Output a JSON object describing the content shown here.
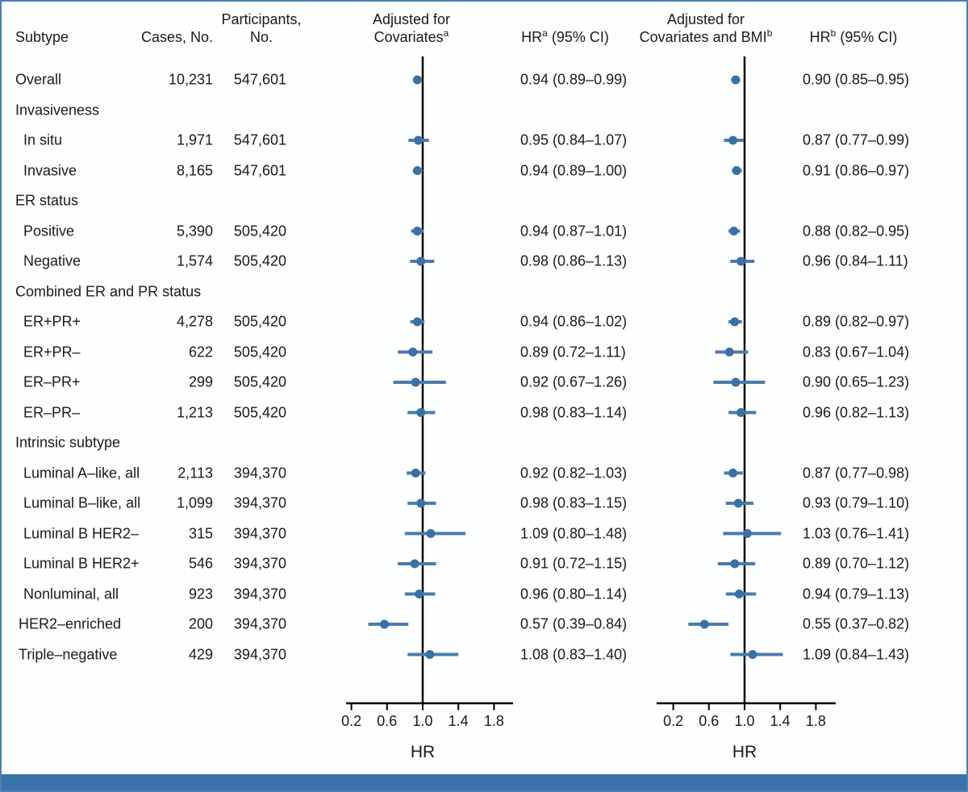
{
  "figure": {
    "columns": {
      "subtype": "Subtype",
      "cases": "Cases, No.",
      "participants_line1": "Participants,",
      "participants_line2": "No.",
      "panel1_line1": "Adjusted for",
      "panel1_line2_pre": "Covariates",
      "panel1_line2_sup": "a",
      "hr1_pre": "HR",
      "hr1_sup": "a",
      "hr1_post": " (95% CI)",
      "panel2_line1": "Adjusted for",
      "panel2_line2_pre": "Covariates and BMI",
      "panel2_line2_sup": "b",
      "hr2_pre": "HR",
      "hr2_sup": "b",
      "hr2_post": " (95% CI)"
    },
    "rows": [
      {
        "label": "Overall",
        "indent": 0,
        "cases": "10,231",
        "participants": "547,601",
        "hr1": "0.94 (0.89–0.99)",
        "hr2": "0.90 (0.85–0.95)"
      },
      {
        "label": "Invasiveness",
        "indent": 0,
        "section": true
      },
      {
        "label": "In situ",
        "indent": 1,
        "cases": "1,971",
        "participants": "547,601",
        "hr1": "0.95 (0.84–1.07)",
        "hr2": "0.87 (0.77–0.99)"
      },
      {
        "label": "Invasive",
        "indent": 1,
        "cases": "8,165",
        "participants": "547,601",
        "hr1": "0.94 (0.89–1.00)",
        "hr2": "0.91 (0.86–0.97)"
      },
      {
        "label": "ER status",
        "indent": 0,
        "section": true
      },
      {
        "label": "Positive",
        "indent": 1,
        "cases": "5,390",
        "participants": "505,420",
        "hr1": "0.94 (0.87–1.01)",
        "hr2": "0.88 (0.82–0.95)"
      },
      {
        "label": "Negative",
        "indent": 1,
        "cases": "1,574",
        "participants": "505,420",
        "hr1": "0.98 (0.86–1.13)",
        "hr2": "0.96 (0.84–1.11)"
      },
      {
        "label": "Combined ER and PR status",
        "indent": 0,
        "section": true
      },
      {
        "label": "ER+PR+",
        "indent": 1,
        "cases": "4,278",
        "participants": "505,420",
        "hr1": "0.94 (0.86–1.02)",
        "hr2": "0.89 (0.82–0.97)"
      },
      {
        "label": "ER+PR–",
        "indent": 1,
        "cases": "622",
        "participants": "505,420",
        "hr1": "0.89 (0.72–1.11)",
        "hr2": "0.83 (0.67–1.04)"
      },
      {
        "label": "ER–PR+",
        "indent": 1,
        "cases": "299",
        "participants": "505,420",
        "hr1": "0.92 (0.67–1.26)",
        "hr2": "0.90 (0.65–1.23)"
      },
      {
        "label": "ER–PR–",
        "indent": 1,
        "cases": "1,213",
        "participants": "505,420",
        "hr1": "0.98 (0.83–1.14)",
        "hr2": "0.96 (0.82–1.13)"
      },
      {
        "label": "Intrinsic subtype",
        "indent": 0,
        "section": true
      },
      {
        "label": "Luminal A–like, all",
        "indent": 1,
        "cases": "2,113",
        "participants": "394,370",
        "hr1": "0.92 (0.82–1.03)",
        "hr2": "0.87 (0.77–0.98)"
      },
      {
        "label": "Luminal B–like, all",
        "indent": 1,
        "cases": "1,099",
        "participants": "394,370",
        "hr1": "0.98 (0.83–1.15)",
        "hr2": "0.93 (0.79–1.10)"
      },
      {
        "label": "Luminal B HER2–",
        "indent": 1,
        "cases": "315",
        "participants": "394,370",
        "hr1": "1.09 (0.80–1.48)",
        "hr2": "1.03 (0.76–1.41)"
      },
      {
        "label": "Luminal B HER2+",
        "indent": 1,
        "cases": "546",
        "participants": "394,370",
        "hr1": "0.91 (0.72–1.15)",
        "hr2": "0.89 (0.70–1.12)"
      },
      {
        "label": "Nonluminal, all",
        "indent": 1,
        "cases": "923",
        "participants": "394,370",
        "hr1": "0.96 (0.80–1.14)",
        "hr2": "0.94 (0.79–1.13)"
      },
      {
        "label": "HER2–enriched",
        "indent": 2,
        "cases": "200",
        "participants": "394,370",
        "hr1": "0.57 (0.39–0.84)",
        "hr2": "0.55 (0.37–0.82)"
      },
      {
        "label": "Triple–negative",
        "indent": 2,
        "cases": "429",
        "participants": "394,370",
        "hr1": "1.08 (0.83–1.40)",
        "hr2": "1.09 (0.84–1.43)"
      }
    ],
    "axis": {
      "tick_labels": [
        "0.2",
        "0.6",
        "1.0",
        "1.4",
        "1.8"
      ],
      "label": "HR"
    },
    "colors": {
      "marker": "#3a70a3",
      "ci_line": "#4a7cab",
      "axis": "#000000",
      "border": "#4c7fae",
      "bar": "#3973a9",
      "text": "#1a1a1a"
    }
  },
  "chart_data": {
    "type": "forest",
    "title": "",
    "xlabel": "HR",
    "xticks": [
      0.2,
      0.6,
      1.0,
      1.4,
      1.8
    ],
    "ref_line": 1.0,
    "xlim": [
      0.13,
      2.03
    ],
    "categories": [
      "Overall",
      "In situ",
      "Invasive",
      "Positive",
      "Negative",
      "ER+PR+",
      "ER+PR–",
      "ER–PR+",
      "ER–PR–",
      "Luminal A–like, all",
      "Luminal B–like, all",
      "Luminal B HER2–",
      "Luminal B HER2+",
      "Nonluminal, all",
      "HER2–enriched",
      "Triple–negative"
    ],
    "cases": [
      10231,
      1971,
      8165,
      5390,
      1574,
      4278,
      622,
      299,
      1213,
      2113,
      1099,
      315,
      546,
      923,
      200,
      429
    ],
    "participants": [
      547601,
      547601,
      547601,
      505420,
      505420,
      505420,
      505420,
      505420,
      505420,
      394370,
      394370,
      394370,
      394370,
      394370,
      394370,
      394370
    ],
    "series": [
      {
        "name": "Adjusted for Covariates (HRa, 95% CI)",
        "hr": [
          0.94,
          0.95,
          0.94,
          0.94,
          0.98,
          0.94,
          0.89,
          0.92,
          0.98,
          0.92,
          0.98,
          1.09,
          0.91,
          0.96,
          0.57,
          1.08
        ],
        "ci_low": [
          0.89,
          0.84,
          0.89,
          0.87,
          0.86,
          0.86,
          0.72,
          0.67,
          0.83,
          0.82,
          0.83,
          0.8,
          0.72,
          0.8,
          0.39,
          0.83
        ],
        "ci_high": [
          0.99,
          1.07,
          1.0,
          1.01,
          1.13,
          1.02,
          1.11,
          1.26,
          1.14,
          1.03,
          1.15,
          1.48,
          1.15,
          1.14,
          0.84,
          1.4
        ]
      },
      {
        "name": "Adjusted for Covariates and BMI (HRb, 95% CI)",
        "hr": [
          0.9,
          0.87,
          0.91,
          0.88,
          0.96,
          0.89,
          0.83,
          0.9,
          0.96,
          0.87,
          0.93,
          1.03,
          0.89,
          0.94,
          0.55,
          1.09
        ],
        "ci_low": [
          0.85,
          0.77,
          0.86,
          0.82,
          0.84,
          0.82,
          0.67,
          0.65,
          0.82,
          0.77,
          0.79,
          0.76,
          0.7,
          0.79,
          0.37,
          0.84
        ],
        "ci_high": [
          0.95,
          0.99,
          0.97,
          0.95,
          1.11,
          0.97,
          1.04,
          1.23,
          1.13,
          0.98,
          1.1,
          1.41,
          1.12,
          1.13,
          0.82,
          1.43
        ]
      }
    ]
  }
}
